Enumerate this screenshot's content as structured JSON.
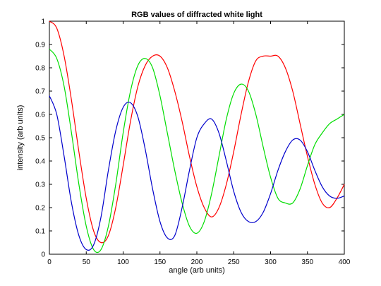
{
  "chart_data": {
    "type": "line",
    "title": "RGB values of diffracted white light",
    "xlabel": "angle (arb units)",
    "ylabel": "intensity (arb units)",
    "xlim": [
      0,
      400
    ],
    "ylim": [
      0,
      1
    ],
    "xticks": [
      0,
      50,
      100,
      150,
      200,
      250,
      300,
      350,
      400
    ],
    "yticks": [
      0,
      0.1,
      0.2,
      0.3,
      0.4,
      0.5,
      0.6,
      0.7,
      0.8,
      0.9,
      1
    ],
    "grid": false,
    "legend": "none",
    "series": [
      {
        "color": "#ff0000",
        "x": [
          0,
          10,
          20,
          30,
          40,
          50,
          60,
          70,
          80,
          90,
          100,
          110,
          120,
          130,
          140,
          150,
          160,
          170,
          180,
          190,
          200,
          210,
          220,
          230,
          240,
          250,
          260,
          270,
          280,
          290,
          300,
          310,
          320,
          330,
          340,
          350,
          360,
          370,
          380,
          390,
          400
        ],
        "y": [
          1.0,
          0.97,
          0.85,
          0.66,
          0.44,
          0.24,
          0.1,
          0.05,
          0.08,
          0.2,
          0.38,
          0.57,
          0.72,
          0.81,
          0.85,
          0.85,
          0.8,
          0.7,
          0.57,
          0.42,
          0.29,
          0.2,
          0.16,
          0.2,
          0.3,
          0.44,
          0.6,
          0.74,
          0.83,
          0.85,
          0.85,
          0.85,
          0.8,
          0.7,
          0.56,
          0.42,
          0.3,
          0.22,
          0.2,
          0.24,
          0.3
        ]
      },
      {
        "color": "#00dd00",
        "x": [
          0,
          10,
          20,
          30,
          40,
          50,
          60,
          70,
          80,
          90,
          100,
          110,
          120,
          130,
          140,
          150,
          160,
          170,
          180,
          190,
          200,
          210,
          220,
          230,
          240,
          250,
          260,
          270,
          280,
          290,
          300,
          310,
          320,
          330,
          340,
          350,
          360,
          370,
          380,
          390,
          400
        ],
        "y": [
          0.88,
          0.84,
          0.72,
          0.52,
          0.3,
          0.12,
          0.02,
          0.02,
          0.12,
          0.3,
          0.52,
          0.7,
          0.81,
          0.84,
          0.8,
          0.68,
          0.52,
          0.36,
          0.22,
          0.12,
          0.09,
          0.14,
          0.26,
          0.42,
          0.58,
          0.69,
          0.73,
          0.7,
          0.6,
          0.46,
          0.33,
          0.24,
          0.22,
          0.22,
          0.28,
          0.38,
          0.47,
          0.52,
          0.56,
          0.58,
          0.6
        ]
      },
      {
        "color": "#0000cc",
        "x": [
          0,
          10,
          20,
          30,
          40,
          50,
          60,
          70,
          80,
          90,
          100,
          110,
          120,
          130,
          140,
          150,
          160,
          170,
          180,
          190,
          200,
          210,
          220,
          230,
          240,
          250,
          260,
          270,
          280,
          290,
          300,
          310,
          320,
          330,
          340,
          350,
          360,
          370,
          380,
          390,
          400
        ],
        "y": [
          0.68,
          0.6,
          0.42,
          0.22,
          0.08,
          0.02,
          0.04,
          0.16,
          0.36,
          0.53,
          0.63,
          0.65,
          0.59,
          0.45,
          0.28,
          0.14,
          0.07,
          0.08,
          0.2,
          0.36,
          0.5,
          0.56,
          0.58,
          0.52,
          0.4,
          0.27,
          0.18,
          0.14,
          0.14,
          0.18,
          0.26,
          0.36,
          0.44,
          0.49,
          0.49,
          0.44,
          0.36,
          0.29,
          0.25,
          0.24,
          0.25
        ]
      }
    ]
  }
}
